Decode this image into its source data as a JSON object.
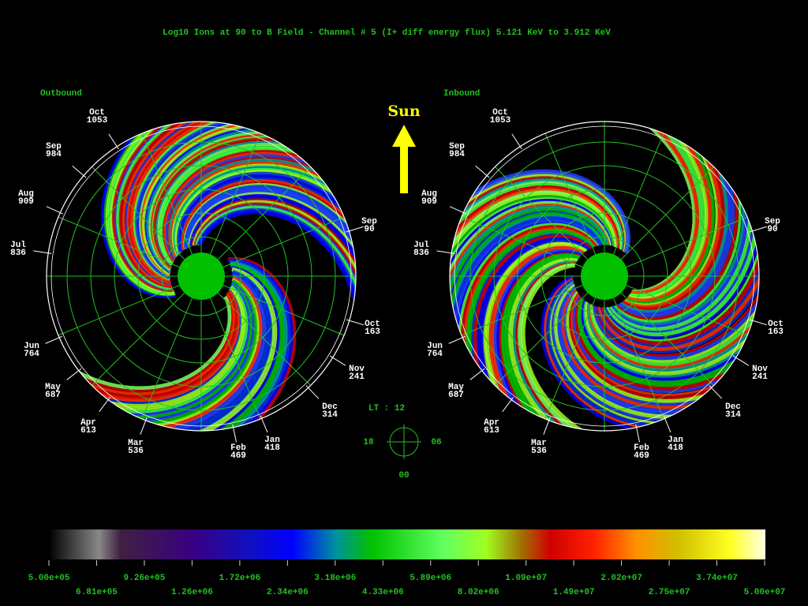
{
  "title": "Log10 Ions at 90 to B Field - Channel # 5 (I+ diff energy flux)  5.121 KeV to  3.912 KeV",
  "panels": [
    {
      "label": "Outbound",
      "orbits": [
        {
          "month": "Oct",
          "orbit": "1053"
        },
        {
          "month": "Sep",
          "orbit": "984"
        },
        {
          "month": "Aug",
          "orbit": "909"
        },
        {
          "month": "Jul",
          "orbit": "836"
        },
        {
          "month": "Jun",
          "orbit": "764"
        },
        {
          "month": "May",
          "orbit": "687"
        },
        {
          "month": "Apr",
          "orbit": "613"
        },
        {
          "month": "Mar",
          "orbit": "536"
        },
        {
          "month": "Feb",
          "orbit": "469"
        },
        {
          "month": "Jan",
          "orbit": "418"
        },
        {
          "month": "Dec",
          "orbit": "314"
        },
        {
          "month": "Nov",
          "orbit": "241"
        },
        {
          "month": "Oct",
          "orbit": "163"
        },
        {
          "month": "Sep",
          "orbit": "90"
        }
      ]
    },
    {
      "label": "Inbound",
      "orbits": [
        {
          "month": "Oct",
          "orbit": "1053"
        },
        {
          "month": "Sep",
          "orbit": "984"
        },
        {
          "month": "Aug",
          "orbit": "909"
        },
        {
          "month": "Jul",
          "orbit": "836"
        },
        {
          "month": "Jun",
          "orbit": "764"
        },
        {
          "month": "May",
          "orbit": "687"
        },
        {
          "month": "Apr",
          "orbit": "613"
        },
        {
          "month": "Mar",
          "orbit": "536"
        },
        {
          "month": "Feb",
          "orbit": "469"
        },
        {
          "month": "Jan",
          "orbit": "418"
        },
        {
          "month": "Dec",
          "orbit": "314"
        },
        {
          "month": "Nov",
          "orbit": "241"
        },
        {
          "month": "Oct",
          "orbit": "163"
        },
        {
          "month": "Sep",
          "orbit": "90"
        }
      ]
    }
  ],
  "sun": "Sun",
  "local_time": {
    "label": "LT : 12",
    "left": "18",
    "right": "06",
    "bottom": "00"
  },
  "colorbar": {
    "upper_labels": [
      "5.00e+05",
      "9.26e+05",
      "1.72e+06",
      "3.18e+06",
      "5.89e+06",
      "1.09e+07",
      "2.02e+07",
      "3.74e+07"
    ],
    "lower_labels": [
      "6.81e+05",
      "1.26e+06",
      "2.34e+06",
      "4.33e+06",
      "8.02e+06",
      "1.49e+07",
      "2.75e+07",
      "5.00e+07"
    ]
  }
}
